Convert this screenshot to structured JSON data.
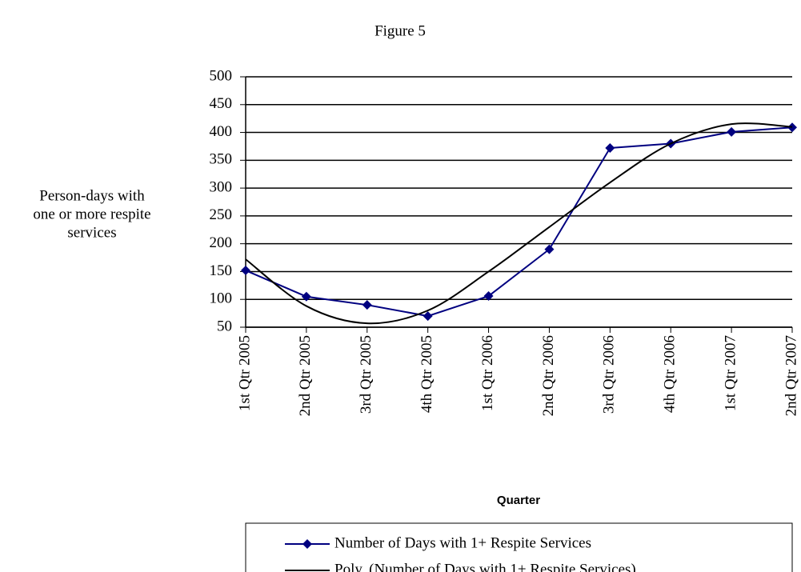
{
  "chart_data": {
    "type": "line",
    "title": "Figure 5",
    "x_label": "Quarter",
    "y_label": [
      "Person-days with",
      "one or more respite",
      "services"
    ],
    "categories": [
      "1st Qtr 2005",
      "2nd Qtr 2005",
      "3rd Qtr 2005",
      "4th Qtr 2005",
      "1st Qtr 2006",
      "2nd Qtr 2006",
      "3rd Qtr 2006",
      "4th Qtr 2006",
      "1st Qtr 2007",
      "2nd Qtr 2007"
    ],
    "series": [
      {
        "name": "Number of Days with 1+ Respite Services",
        "color": "#000080",
        "marker": "diamond",
        "values": [
          152,
          105,
          90,
          70,
          106,
          190,
          372,
          380,
          401,
          409
        ]
      },
      {
        "name": "Poly. (Number of Days with 1+ Respite Services)",
        "color": "#000000",
        "smooth": true,
        "values": [
          172,
          88,
          57,
          80,
          150,
          230,
          310,
          380,
          415,
          410
        ]
      }
    ],
    "ylim": [
      50,
      500
    ],
    "yticks": [
      50,
      100,
      150,
      200,
      250,
      300,
      350,
      400,
      450,
      500
    ],
    "grid": true,
    "legend": "bottom"
  }
}
